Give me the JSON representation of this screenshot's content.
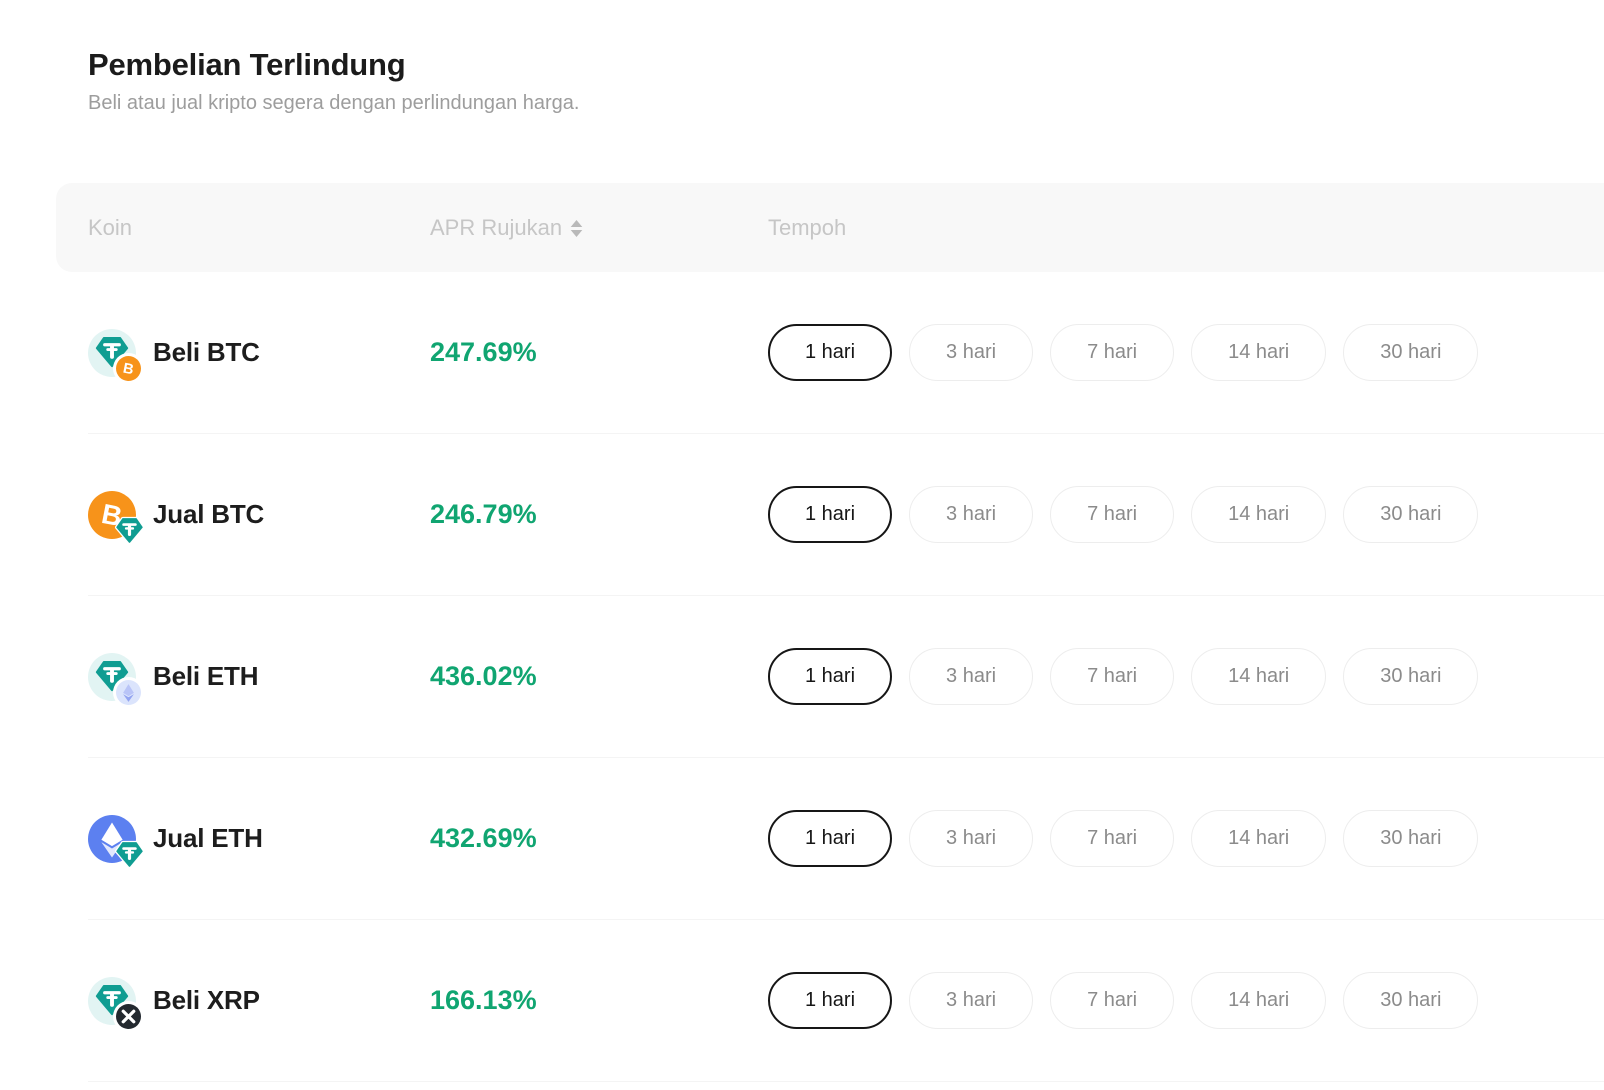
{
  "header": {
    "title": "Pembelian Terlindung",
    "subtitle": "Beli atau jual kripto segera dengan perlindungan harga."
  },
  "table": {
    "columns": {
      "coin": "Koin",
      "apr": "APR Rujukan",
      "tenor": "Tempoh"
    },
    "sort_icon": "sort-arrows-icon",
    "tenor_options": [
      "1 hari",
      "3 hari",
      "7 hari",
      "14 hari",
      "30 hari"
    ],
    "selected_tenor": "1 hari",
    "rows": [
      {
        "label": "Beli BTC",
        "apr": "247.69%",
        "icon": {
          "base": "usdt",
          "badge": "btc"
        }
      },
      {
        "label": "Jual BTC",
        "apr": "246.79%",
        "icon": {
          "base": "btc",
          "badge": "usdt"
        }
      },
      {
        "label": "Beli ETH",
        "apr": "436.02%",
        "icon": {
          "base": "usdt",
          "badge": "eth"
        }
      },
      {
        "label": "Jual ETH",
        "apr": "432.69%",
        "icon": {
          "base": "eth",
          "badge": "usdt"
        }
      },
      {
        "label": "Beli XRP",
        "apr": "166.13%",
        "icon": {
          "base": "usdt",
          "badge": "xrp"
        }
      }
    ]
  },
  "colors": {
    "apr_green": "#10a571",
    "usdt_teal": "#109d92",
    "usdt_light_bg": "#e2f4f3",
    "btc_orange": "#f7931a",
    "eth_blue": "#5c80f0",
    "eth_badge_bg": "#dbe4fc",
    "eth_badge_top": "#b9c4f7",
    "eth_badge_bottom": "#93a4f1",
    "xrp_dark": "#23292f",
    "selected_border": "#161616",
    "header_label_gray": "#c6c6c6",
    "sort_icon_gray": "#b9b9b9"
  }
}
